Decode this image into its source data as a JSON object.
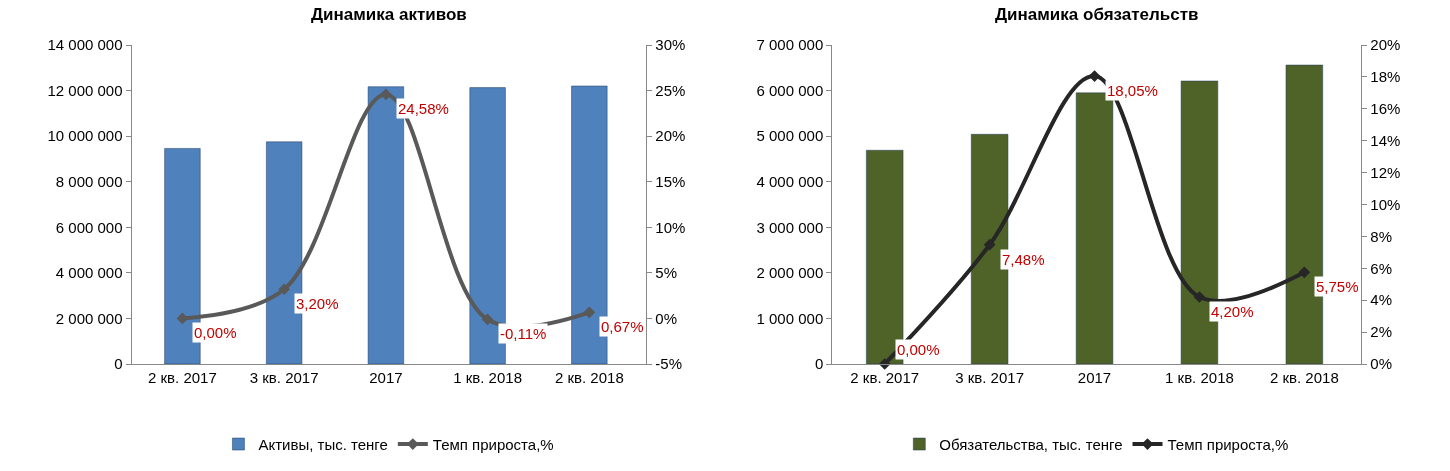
{
  "chart_data": [
    {
      "type": "bar",
      "title": "Динамика активов",
      "categories": [
        "2 кв. 2017",
        "3 кв. 2017",
        "2017",
        "1 кв. 2018",
        "2 кв. 2018"
      ],
      "series": [
        {
          "name": "Активы, тыс. тенге",
          "color": "#4f81bd",
          "values": [
            9460000,
            9750000,
            12170000,
            12130000,
            12200000
          ]
        },
        {
          "name": "Темп прироста,%",
          "type": "line",
          "axis": "y2",
          "color": "#595959",
          "values": [
            0,
            3.2,
            24.58,
            -0.11,
            0.67
          ],
          "value_labels": [
            "0,00%",
            "3,20%",
            "24,58%",
            "-0,11%",
            "0,67%"
          ]
        }
      ],
      "ylim": [
        0,
        14000000
      ],
      "yticks": [
        0,
        {
          "value": 2000000,
          "label": "2 000 000"
        },
        {
          "value": 4000000,
          "label": "4 000 000"
        },
        {
          "value": 6000000,
          "label": "6 000 000"
        },
        {
          "value": 8000000,
          "label": "8 000 000"
        },
        {
          "value": 10000000,
          "label": "10 000 000"
        },
        {
          "value": 12000000,
          "label": "12 000 000"
        },
        {
          "value": 14000000,
          "label": "14 000 000"
        }
      ],
      "y2lim": [
        -5,
        30
      ],
      "y2ticks": [
        {
          "value": -5,
          "label": "-5%"
        },
        {
          "value": 0,
          "label": "0%"
        },
        {
          "value": 5,
          "label": "5%"
        },
        {
          "value": 10,
          "label": "10%"
        },
        {
          "value": 15,
          "label": "15%"
        },
        {
          "value": 20,
          "label": "20%"
        },
        {
          "value": 25,
          "label": "25%"
        },
        {
          "value": 30,
          "label": "30%"
        }
      ],
      "marker": "diamond",
      "legend": "bottom"
    },
    {
      "type": "bar",
      "title": "Динамика обязательств",
      "categories": [
        "2 кв. 2017",
        "3 кв. 2017",
        "2017",
        "1 кв. 2018",
        "2 кв. 2018"
      ],
      "series": [
        {
          "name": "Обязательства, тыс. тенге",
          "color": "#4f6228",
          "values": [
            4690000,
            5040000,
            5950000,
            6210000,
            6560000
          ]
        },
        {
          "name": "Темп прироста,%",
          "type": "line",
          "axis": "y2",
          "color": "#262626",
          "values": [
            0,
            7.48,
            18.05,
            4.2,
            5.75
          ],
          "value_labels": [
            "0,00%",
            "7,48%",
            "18,05%",
            "4,20%",
            "5,75%"
          ]
        }
      ],
      "ylim": [
        0,
        7000000
      ],
      "yticks": [
        0,
        {
          "value": 1000000,
          "label": "1 000 000"
        },
        {
          "value": 2000000,
          "label": "2 000 000"
        },
        {
          "value": 3000000,
          "label": "3 000 000"
        },
        {
          "value": 4000000,
          "label": "4 000 000"
        },
        {
          "value": 5000000,
          "label": "5 000 000"
        },
        {
          "value": 6000000,
          "label": "6 000 000"
        },
        {
          "value": 7000000,
          "label": "7 000 000"
        }
      ],
      "y2lim": [
        0,
        20
      ],
      "y2ticks": [
        {
          "value": 0,
          "label": "0%"
        },
        {
          "value": 2,
          "label": "2%"
        },
        {
          "value": 4,
          "label": "4%"
        },
        {
          "value": 6,
          "label": "6%"
        },
        {
          "value": 8,
          "label": "8%"
        },
        {
          "value": 10,
          "label": "10%"
        },
        {
          "value": 12,
          "label": "12%"
        },
        {
          "value": 14,
          "label": "14%"
        },
        {
          "value": 16,
          "label": "16%"
        },
        {
          "value": 18,
          "label": "18%"
        },
        {
          "value": 20,
          "label": "20%"
        }
      ],
      "marker": "diamond",
      "legend": "bottom"
    }
  ]
}
